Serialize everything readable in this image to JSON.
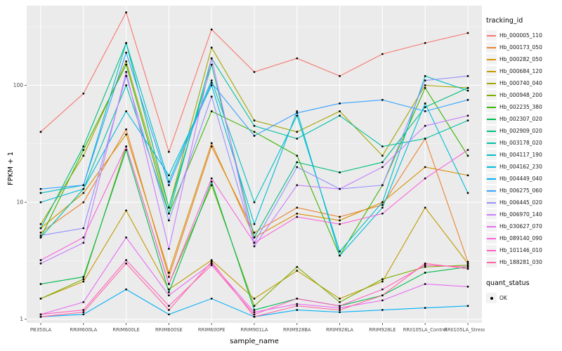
{
  "chart_data": {
    "type": "line",
    "title": "",
    "xlabel": "sample_name",
    "ylabel": "FPKM + 1",
    "y_scale": "log10",
    "ylim": [
      0.93,
      480
    ],
    "y_ticks": [
      1,
      10,
      100
    ],
    "y_minor": [
      3.162,
      31.62,
      316.2
    ],
    "grid": "on",
    "panel_bg": "#EBEBEB",
    "grid_color": "#FFFFFF",
    "point_color": "#000000",
    "legend_position": "right",
    "legend_title": "tracking_id",
    "quant_legend": {
      "title": "quant_status",
      "entries": [
        "OK"
      ]
    },
    "categories": [
      "PB350LA",
      "RRIM600LA",
      "RRIM600LE",
      "RRIM600SE",
      "RRIM600PE",
      "RRIM901LA",
      "RRIM928BA",
      "RRIM928LA",
      "RRIM928LE",
      "RRII105LA_Control",
      "RRII105LA_Stressed"
    ],
    "series": [
      {
        "name": "Hb_000005_110",
        "color": "#F8766D",
        "values": [
          40,
          85,
          420,
          27,
          300,
          130,
          170,
          120,
          185,
          230,
          280
        ]
      },
      {
        "name": "Hb_000173_050",
        "color": "#EA8331",
        "values": [
          5.5,
          10,
          42,
          2.3,
          30,
          5.5,
          9,
          7.5,
          9.5,
          35,
          3.1
        ]
      },
      {
        "name": "Hb_000282_050",
        "color": "#D89000",
        "values": [
          6,
          12,
          38,
          2.5,
          32,
          5,
          8,
          7,
          10,
          20,
          17
        ]
      },
      {
        "name": "Hb_000684_120",
        "color": "#C09B00",
        "values": [
          1.5,
          2.1,
          8.5,
          1.8,
          3.2,
          1.5,
          2.6,
          1.5,
          2.1,
          9,
          3
        ]
      },
      {
        "name": "Hb_000740_040",
        "color": "#A3A500",
        "values": [
          6.5,
          25,
          160,
          9,
          210,
          50,
          40,
          60,
          25,
          100,
          95
        ]
      },
      {
        "name": "Hb_000948_200",
        "color": "#7CAE00",
        "values": [
          1.5,
          2.2,
          30,
          2,
          14,
          1.3,
          2.8,
          1.4,
          2.2,
          2.8,
          2.9
        ]
      },
      {
        "name": "Hb_002235_380",
        "color": "#39B600",
        "values": [
          5,
          28,
          150,
          8,
          60,
          40,
          25,
          3.5,
          14,
          95,
          25
        ]
      },
      {
        "name": "Hb_002307_020",
        "color": "#00BB4E",
        "values": [
          2,
          2.3,
          28,
          1.7,
          15,
          1.2,
          1.5,
          1.3,
          1.6,
          2.5,
          2.8
        ]
      },
      {
        "name": "Hb_002909_020",
        "color": "#00BF7D",
        "values": [
          6,
          30,
          230,
          9,
          150,
          5,
          22,
          18,
          22,
          65,
          95
        ]
      },
      {
        "name": "Hb_003178_020",
        "color": "#00C1A3",
        "values": [
          5,
          13,
          100,
          8,
          170,
          45,
          35,
          55,
          30,
          35,
          50
        ]
      },
      {
        "name": "Hb_004117_190",
        "color": "#00BFC4",
        "values": [
          12,
          14,
          230,
          15,
          110,
          10,
          55,
          3.8,
          10,
          120,
          90
        ]
      },
      {
        "name": "Hb_004162_230",
        "color": "#00BBDA",
        "values": [
          10,
          13,
          60,
          17,
          100,
          6.5,
          60,
          3.5,
          9,
          70,
          12
        ]
      },
      {
        "name": "Hb_004449_040",
        "color": "#00B0F6",
        "values": [
          1.05,
          1.1,
          1.8,
          1.1,
          1.5,
          1.05,
          1.2,
          1.15,
          1.2,
          1.25,
          1.3
        ]
      },
      {
        "name": "Hb_006275_060",
        "color": "#35A2FF",
        "values": [
          13,
          14,
          190,
          14,
          105,
          37,
          58,
          70,
          75,
          60,
          75
        ]
      },
      {
        "name": "Hb_006445_020",
        "color": "#9590FF",
        "values": [
          5.2,
          6,
          120,
          7,
          80,
          4.5,
          20,
          13,
          14,
          110,
          120
        ]
      },
      {
        "name": "Hb_006970_140",
        "color": "#C77CFF",
        "values": [
          3,
          4.5,
          130,
          4,
          170,
          4.2,
          14,
          13,
          20,
          45,
          55
        ]
      },
      {
        "name": "Hb_030627_070",
        "color": "#E76BF3",
        "values": [
          1.1,
          1.4,
          5,
          1.6,
          3,
          1.15,
          1.35,
          1.25,
          1.45,
          2,
          1.9
        ]
      },
      {
        "name": "Hb_089140_090",
        "color": "#FA62DB",
        "values": [
          3.2,
          5,
          30,
          2,
          16,
          4.5,
          7.5,
          6.5,
          8,
          16,
          28
        ]
      },
      {
        "name": "Hb_101146_010",
        "color": "#FF61C3",
        "values": [
          1.1,
          1.2,
          3.2,
          1.3,
          2.9,
          1.1,
          1.5,
          1.3,
          1.8,
          2.9,
          2.8
        ]
      },
      {
        "name": "Hb_188281_030",
        "color": "#FF67A4",
        "values": [
          1.05,
          1.15,
          3.0,
          1.2,
          3.1,
          1.05,
          1.3,
          1.2,
          1.6,
          3,
          2.7
        ]
      }
    ]
  }
}
